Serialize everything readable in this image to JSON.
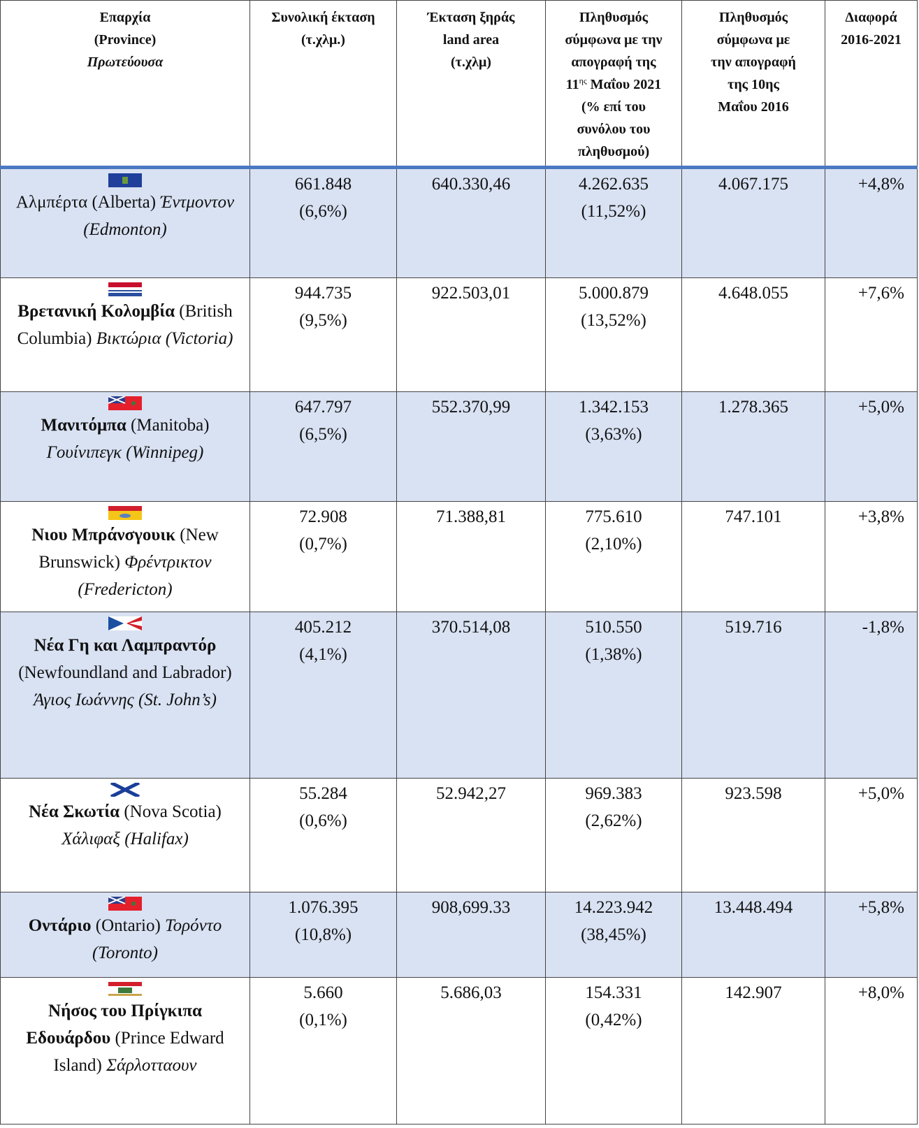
{
  "table": {
    "header": [
      [
        "Επαρχία",
        "(Province)",
        {
          "italic": "Πρωτεύουσα"
        }
      ],
      [
        "Συνολική έκταση",
        "(τ.χλμ.)"
      ],
      [
        "Έκταση ξηράς",
        "land area",
        "(τ.χλμ)"
      ],
      [
        "Πληθυσμός",
        "σύμφωνα με την",
        "απογραφή της",
        {
          "text": "11",
          "sup": "ης",
          "rest": " Μαΐου 2021"
        },
        "(% επί του",
        "συνόλου του",
        "πληθυσμού)"
      ],
      [
        "Πληθυσμός",
        "σύμφωνα με",
        "την απογραφή",
        "της 10ης",
        "Μαΐου 2016"
      ],
      [
        "Διαφορά",
        "2016-2021"
      ]
    ],
    "rows": [
      {
        "name": "Αλμπέρτα",
        "name_en": "(Alberta)",
        "capital": "Έντμοντον (Edmonton)",
        "total_area": "661.848",
        "total_area_pct": "(6,6%)",
        "land_area": "640.330,46",
        "pop_2021": "4.262.635",
        "pop_2021_pct": "(11,52%)",
        "pop_2016": "4.067.175",
        "change": "+4,8%"
      },
      {
        "name": "Βρετανική Κολομβία",
        "name_en": "(British Columbia)",
        "capital": "Βικτώρια (Victoria)",
        "total_area": "944.735",
        "total_area_pct": "(9,5%)",
        "land_area": "922.503,01",
        "pop_2021": "5.000.879",
        "pop_2021_pct": "(13,52%)",
        "pop_2016": "4.648.055",
        "change": "+7,6%"
      },
      {
        "name": "Μανιτόμπα",
        "name_en": "(Manitoba)",
        "capital": "Γουίνιπεγκ (Winnipeg)",
        "total_area": "647.797",
        "total_area_pct": "(6,5%)",
        "land_area": "552.370,99",
        "pop_2021": "1.342.153",
        "pop_2021_pct": "(3,63%)",
        "pop_2016": "1.278.365",
        "change": "+5,0%"
      },
      {
        "name": "Νιου Μπράνσγουικ",
        "name_en": "(New Brunswick)",
        "capital": "Φρέντρικτον (Fredericton)",
        "total_area": "72.908",
        "total_area_pct": "(0,7%)",
        "land_area": "71.388,81",
        "pop_2021": "775.610",
        "pop_2021_pct": "(2,10%)",
        "pop_2016": "747.101",
        "change": "+3,8%"
      },
      {
        "name": "Νέα Γη και Λαμπραντόρ",
        "name_en": "(Newfoundland and Labrador)",
        "capital": "Άγιος Ιωάννης (St. John’s)",
        "total_area": "405.212",
        "total_area_pct": "(4,1%)",
        "land_area": "370.514,08",
        "pop_2021": "510.550",
        "pop_2021_pct": "(1,38%)",
        "pop_2016": "519.716",
        "change": "-1,8%"
      },
      {
        "name": "Νέα Σκωτία",
        "name_en": "(Nova Scotia)",
        "capital": "Χάλιφαξ (Halifax)",
        "total_area": "55.284",
        "total_area_pct": "(0,6%)",
        "land_area": "52.942,27",
        "pop_2021": "969.383",
        "pop_2021_pct": "(2,62%)",
        "pop_2016": "923.598",
        "change": "+5,0%"
      },
      {
        "name": "Οντάριο",
        "name_en": "(Ontario)",
        "capital": "Τορόντο (Toronto)",
        "total_area": "1.076.395",
        "total_area_pct": "(10,8%)",
        "land_area": "908,699.33",
        "pop_2021": "14.223.942",
        "pop_2021_pct": "(38,45%)",
        "pop_2016": "13.448.494",
        "change": "+5,8%"
      },
      {
        "name": "Νήσος του Πρίγκιπα Εδουάρδου",
        "name_en": "(Prince Edward Island)",
        "capital": "Σάρλοτταουν",
        "total_area": "5.660",
        "total_area_pct": "(0,1%)",
        "land_area": "5.686,03",
        "pop_2021": "154.331",
        "pop_2021_pct": "(0,42%)",
        "pop_2016": "142.907",
        "change": "+8,0%"
      }
    ]
  }
}
